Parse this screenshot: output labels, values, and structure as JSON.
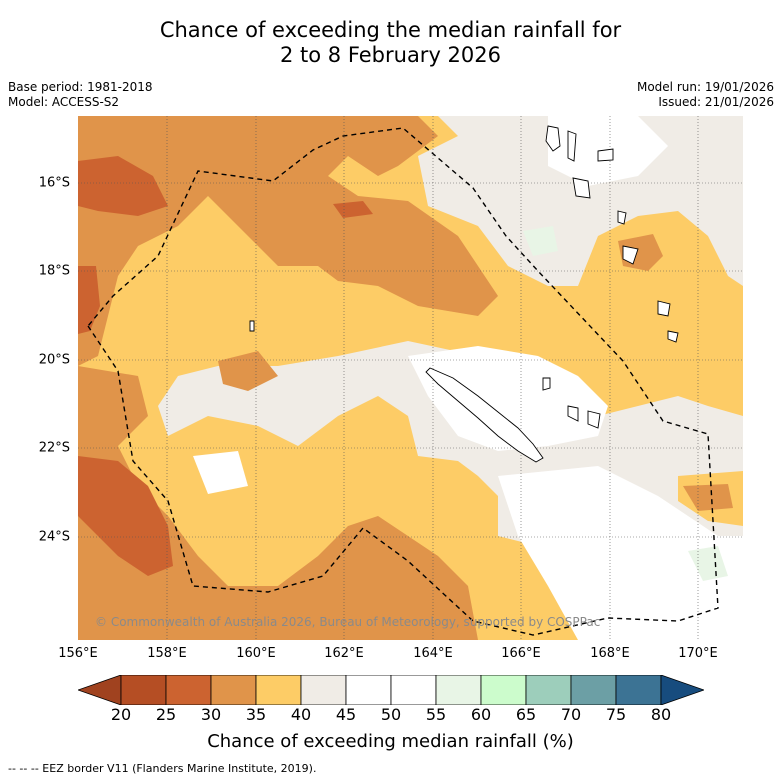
{
  "title_line1": "Chance of exceeding the median rainfall for",
  "title_line2": "2 to 8 February 2026",
  "base_period": "Base period: 1981-2018",
  "model": "Model: ACCESS-S2",
  "model_run": "Model run: 19/01/2026",
  "issued": "Issued: 21/01/2026",
  "lat_labels": [
    "16°S",
    "18°S",
    "20°S",
    "22°S",
    "24°S"
  ],
  "lon_labels": [
    "156°E",
    "158°E",
    "160°E",
    "162°E",
    "164°E",
    "166°E",
    "168°E",
    "170°E"
  ],
  "copyright": "© Commonwealth of Australia 2026, Bureau of Meteorology, supported by COSPPac",
  "colorbar": {
    "ticks": [
      "20",
      "25",
      "30",
      "35",
      "40",
      "45",
      "50",
      "55",
      "60",
      "65",
      "70",
      "75",
      "80"
    ],
    "colors": [
      "#a0421f",
      "#b54e24",
      "#cc6330",
      "#e0944a",
      "#fdcc66",
      "#f0ece6",
      "#ffffff",
      "#ffffff",
      "#e8f5e6",
      "#ccfccc",
      "#9dcebb",
      "#6c9fa5",
      "#3c7394",
      "#174c7e"
    ],
    "label": "Chance of exceeding median rainfall (%)"
  },
  "footnote": "--  --  -- EEZ border V11 (Flanders Marine Institute, 2019).",
  "colors": {
    "orange_dark": "#cc6330",
    "orange": "#e0944a",
    "yellow": "#fdcc66",
    "neutral": "#f0ece6",
    "white": "#ffffff",
    "green_light": "#e8f5e6"
  }
}
